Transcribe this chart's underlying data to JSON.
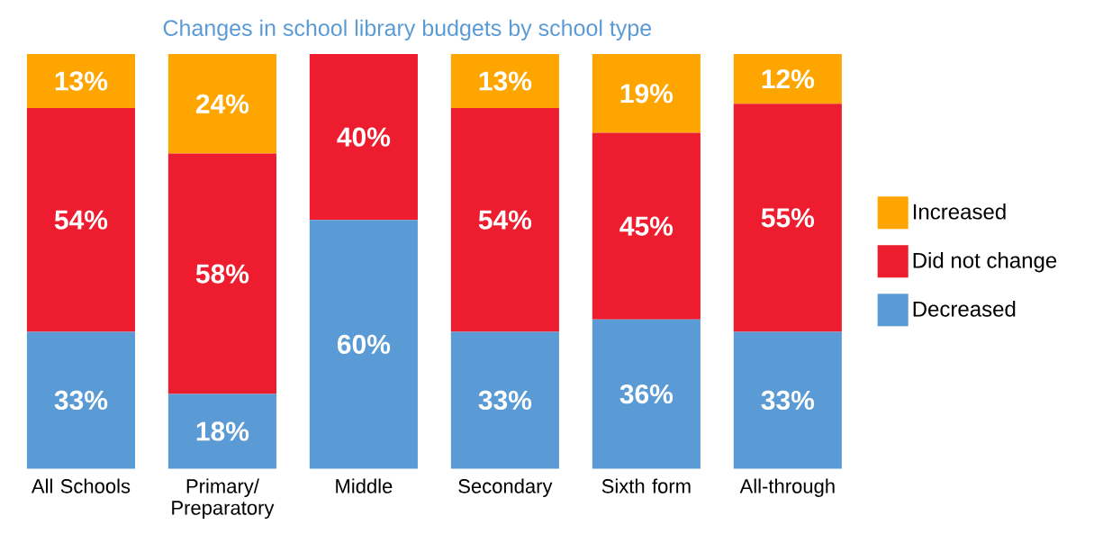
{
  "chart_data": {
    "type": "bar",
    "stacked": true,
    "title": "Changes in school library budgets by school type",
    "categories": [
      "All Schools",
      "Primary/ Preparatory",
      "Middle",
      "Secondary",
      "Sixth form",
      "All-through"
    ],
    "series": [
      {
        "name": "Decreased",
        "color": "#5b9bd5",
        "values": [
          33,
          18,
          60,
          33,
          36,
          33
        ],
        "value_labels": [
          "33%",
          "18%",
          "60%",
          "33%",
          "36%",
          "33%"
        ]
      },
      {
        "name": "Did not change",
        "color": "#ed1c2e",
        "values": [
          54,
          58,
          40,
          54,
          45,
          55
        ],
        "value_labels": [
          "54%",
          "58%",
          "40%",
          "54%",
          "45%",
          "55%"
        ]
      },
      {
        "name": "Increased",
        "color": "#ffa500",
        "values": [
          13,
          24,
          null,
          13,
          19,
          12
        ],
        "value_labels": [
          "13%",
          "24%",
          null,
          "13%",
          "19%",
          "12%"
        ]
      }
    ],
    "legend": "right"
  }
}
